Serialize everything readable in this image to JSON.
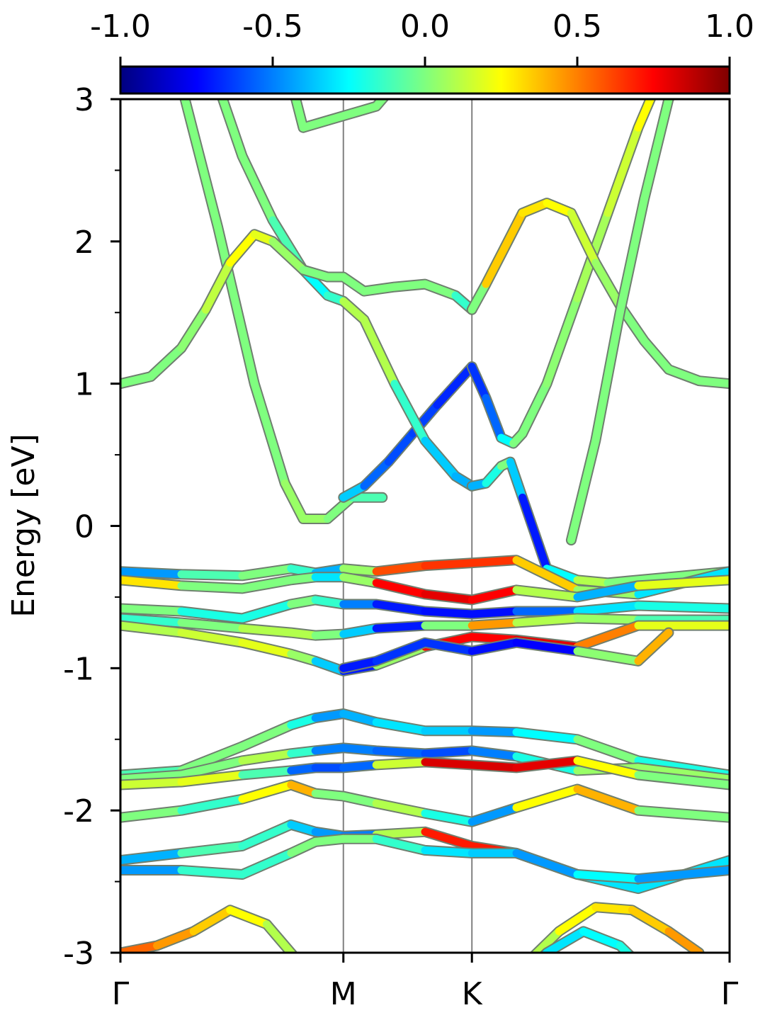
{
  "chart_data": {
    "type": "line",
    "ylabel": "Energy [eV]",
    "xlabel": "",
    "ylim": [
      -3,
      3
    ],
    "x_ticks": [
      {
        "label": "Γ",
        "k": 0
      },
      {
        "label": "M",
        "k": 0.366
      },
      {
        "label": "K",
        "k": 0.577
      },
      {
        "label": "Γ",
        "k": 1.0
      }
    ],
    "y_major_ticks": [
      3,
      2,
      1,
      0,
      -1,
      -2,
      -3
    ],
    "y_tick_labels": [
      "3",
      "2",
      "1",
      "0",
      "-1",
      "-2",
      "-3"
    ],
    "y_minor_ticks": [
      2.5,
      1.5,
      0.5,
      -0.5,
      -1.5,
      -2.5
    ],
    "vertical_lines_at_k": [
      0.366,
      0.577
    ],
    "colorbar": {
      "position": "top",
      "range": [
        -1.0,
        1.0
      ],
      "ticks": [
        -1.0,
        -0.5,
        0.0,
        0.5,
        1.0
      ],
      "tick_labels": [
        "-1.0",
        "-0.5",
        "0.0",
        "0.5",
        "1.0"
      ],
      "colormap": "jet",
      "colors": [
        "#00007f",
        "#0000ff",
        "#007fff",
        "#00ffff",
        "#7fff7f",
        "#ffff00",
        "#ff7f00",
        "#ff0000",
        "#7f0000"
      ]
    },
    "series": [
      {
        "k": [
          0.1,
          0.16,
          0.22,
          0.27,
          0.3,
          0.34,
          0.38,
          0.43
        ],
        "E": [
          3.1,
          2.1,
          1.0,
          0.3,
          0.05,
          0.05,
          0.2,
          0.2
        ],
        "c": [
          0.0,
          0.0,
          0.0,
          0.0,
          0.1,
          0.0,
          0.0,
          -0.2
        ]
      },
      {
        "k": [
          0.366,
          0.4,
          0.44,
          0.48,
          0.52,
          0.577
        ],
        "E": [
          0.2,
          0.28,
          0.45,
          0.65,
          0.85,
          1.12
        ],
        "c": [
          -0.2,
          -0.5,
          -0.6,
          -0.6,
          -0.65,
          -0.7
        ]
      },
      {
        "k": [
          0.577,
          0.6,
          0.625,
          0.645,
          0.66,
          0.7,
          0.75,
          0.8,
          0.85,
          0.9,
          0.95,
          1.0
        ],
        "E": [
          1.12,
          0.9,
          0.62,
          0.58,
          0.65,
          1.0,
          1.6,
          2.2,
          2.8,
          3.3,
          3.8,
          4.2
        ],
        "c": [
          -0.7,
          -0.6,
          -0.5,
          0.0,
          0.0,
          0.0,
          0.05,
          0.1,
          0.2,
          0.3,
          0.3,
          0.3
        ]
      },
      {
        "k": [
          0.16,
          0.2,
          0.25,
          0.3,
          0.34,
          0.366,
          0.4,
          0.45,
          0.5,
          0.55,
          0.577
        ],
        "E": [
          3.1,
          2.6,
          2.15,
          1.8,
          1.62,
          1.58,
          1.45,
          1.0,
          0.6,
          0.35,
          0.28
        ],
        "c": [
          0.0,
          0.0,
          0.0,
          -0.2,
          -0.3,
          0.0,
          0.2,
          0.0,
          -0.3,
          -0.4,
          -0.4
        ],
        "bottom_c": 0.5
      },
      {
        "k": [
          0.577,
          0.6,
          0.625,
          0.64,
          0.66,
          0.7,
          0.75,
          0.8,
          0.9,
          1.0
        ],
        "E": [
          0.28,
          0.3,
          0.42,
          0.45,
          0.2,
          -0.3,
          -0.38,
          -0.4,
          -0.36,
          -0.32
        ],
        "c": [
          -0.4,
          -0.4,
          0.0,
          0.0,
          -0.7,
          -0.7,
          0.2,
          0.0,
          0.0,
          0.0
        ]
      },
      {
        "k": [
          0.0,
          0.05,
          0.1,
          0.14,
          0.18,
          0.22,
          0.25,
          0.3,
          0.34,
          0.366,
          0.4,
          0.45,
          0.5,
          0.55,
          0.577
        ],
        "E": [
          1.0,
          1.05,
          1.25,
          1.52,
          1.85,
          2.05,
          2.0,
          1.8,
          1.75,
          1.75,
          1.65,
          1.68,
          1.7,
          1.62,
          1.52
        ],
        "c": [
          0.0,
          0.0,
          0.0,
          0.05,
          0.2,
          0.3,
          0.1,
          0.0,
          0.0,
          0.0,
          0.0,
          0.0,
          0.0,
          0.0,
          -0.3
        ],
        "bottom_c": 0.5
      },
      {
        "k": [
          0.577,
          0.6,
          0.63,
          0.66,
          0.7,
          0.74,
          0.78,
          0.82,
          0.86,
          0.9,
          0.95,
          1.0
        ],
        "E": [
          1.52,
          1.7,
          1.95,
          2.2,
          2.27,
          2.2,
          1.85,
          1.55,
          1.3,
          1.1,
          1.02,
          1.0
        ],
        "c": [
          -0.3,
          0.3,
          0.4,
          0.3,
          0.3,
          0.2,
          0.1,
          0.0,
          0.0,
          0.0,
          0.0,
          0.0
        ]
      },
      {
        "k": [
          0.74,
          0.78,
          0.82,
          0.86,
          0.9,
          0.95
        ],
        "E": [
          -0.1,
          0.6,
          1.5,
          2.3,
          3.0,
          3.4
        ],
        "c": [
          0.0,
          0.0,
          0.0,
          0.0,
          0.0,
          0.0
        ]
      },
      {
        "k": [
          0.27,
          0.3,
          0.34,
          0.38,
          0.42,
          0.45
        ],
        "E": [
          3.3,
          2.8,
          2.85,
          2.9,
          2.95,
          3.1
        ],
        "c": [
          0.0,
          0.0,
          0.0,
          0.0,
          0.0,
          0.0
        ]
      },
      {
        "k": [
          0.0,
          0.1,
          0.2,
          0.28,
          0.32,
          0.366,
          0.42,
          0.5,
          0.577,
          0.65,
          0.75,
          0.85,
          1.0
        ],
        "E": [
          -0.32,
          -0.34,
          -0.35,
          -0.3,
          -0.33,
          -0.3,
          -0.32,
          -0.28,
          -0.26,
          -0.24,
          -0.45,
          -0.48,
          -0.32
        ],
        "c": [
          -0.7,
          -0.2,
          0.0,
          0.0,
          -0.3,
          -0.5,
          0.6,
          0.6,
          0.7,
          0.6,
          0.1,
          0.0,
          -0.6
        ]
      },
      {
        "k": [
          0.0,
          0.1,
          0.2,
          0.28,
          0.32,
          0.366,
          0.42,
          0.5,
          0.577,
          0.65,
          0.75,
          0.85,
          1.0
        ],
        "E": [
          -0.38,
          -0.42,
          -0.44,
          -0.38,
          -0.36,
          -0.36,
          -0.4,
          -0.48,
          -0.52,
          -0.45,
          -0.5,
          -0.42,
          -0.38
        ],
        "c": [
          0.6,
          0.0,
          0.0,
          0.0,
          0.0,
          -0.6,
          0.7,
          0.8,
          0.8,
          0.7,
          -0.5,
          -0.3,
          0.7
        ]
      },
      {
        "k": [
          0.0,
          0.1,
          0.2,
          0.28,
          0.32,
          0.366,
          0.42,
          0.5,
          0.577,
          0.65,
          0.75,
          0.85,
          1.0
        ],
        "E": [
          -0.58,
          -0.6,
          -0.65,
          -0.55,
          -0.52,
          -0.55,
          -0.55,
          -0.6,
          -0.62,
          -0.6,
          -0.6,
          -0.56,
          -0.58
        ],
        "c": [
          0.0,
          0.0,
          -0.4,
          0.0,
          0.0,
          -0.3,
          -0.7,
          -0.7,
          -0.75,
          -0.7,
          -0.4,
          -0.2,
          -0.2
        ]
      },
      {
        "k": [
          0.0,
          0.1,
          0.2,
          0.28,
          0.32,
          0.366,
          0.42,
          0.5,
          0.577,
          0.65,
          0.75,
          0.85,
          1.0
        ],
        "E": [
          -0.65,
          -0.68,
          -0.72,
          -0.75,
          -0.77,
          -0.76,
          -0.72,
          -0.7,
          -0.7,
          -0.68,
          -0.65,
          -0.66,
          -0.66
        ],
        "c": [
          -0.3,
          0.0,
          0.0,
          0.2,
          0.0,
          0.0,
          -0.7,
          -0.7,
          0.7,
          0.2,
          0.0,
          0.1,
          -0.3
        ]
      },
      {
        "k": [
          0.0,
          0.1,
          0.2,
          0.28,
          0.32,
          0.366,
          0.42,
          0.5,
          0.577,
          0.65,
          0.75,
          0.85,
          1.0
        ],
        "E": [
          -0.7,
          -0.75,
          -0.82,
          -0.9,
          -0.95,
          -1.02,
          -0.98,
          -0.85,
          -0.78,
          -0.8,
          -0.85,
          -0.7,
          -0.7
        ],
        "c": [
          0.2,
          0.0,
          0.3,
          0.1,
          0.0,
          -0.7,
          -0.7,
          0.8,
          0.7,
          0.8,
          0.8,
          0.2,
          0.2
        ]
      },
      {
        "k": [
          0.366,
          0.42,
          0.5,
          0.577,
          0.65,
          0.75,
          0.85,
          0.9
        ],
        "E": [
          -1.0,
          -0.95,
          -0.82,
          -0.88,
          -0.82,
          -0.88,
          -0.95,
          -0.75
        ],
        "c": [
          -0.7,
          -0.7,
          -0.6,
          -0.7,
          -0.75,
          -0.75,
          0.8,
          0.0
        ]
      },
      {
        "k": [
          0.0,
          0.1,
          0.2,
          0.28,
          0.32,
          0.366,
          0.42,
          0.5,
          0.577,
          0.65,
          0.75,
          0.85,
          1.0
        ],
        "E": [
          -1.75,
          -1.72,
          -1.55,
          -1.4,
          -1.35,
          -1.32,
          -1.38,
          -1.44,
          -1.44,
          -1.45,
          -1.5,
          -1.65,
          -1.75
        ],
        "c": [
          -0.2,
          0.0,
          0.0,
          0.0,
          -0.4,
          -0.5,
          -0.3,
          -0.3,
          -0.4,
          -0.5,
          0.0,
          0.0,
          -0.4
        ]
      },
      {
        "k": [
          0.0,
          0.1,
          0.2,
          0.28,
          0.32,
          0.366,
          0.42,
          0.5,
          0.577,
          0.65,
          0.75,
          0.85,
          1.0
        ],
        "E": [
          -1.78,
          -1.75,
          -1.65,
          -1.6,
          -1.58,
          -1.56,
          -1.58,
          -1.6,
          -1.58,
          -1.62,
          -1.72,
          -1.7,
          -1.78
        ],
        "c": [
          0.0,
          0.0,
          0.0,
          0.2,
          -0.5,
          -0.5,
          -0.5,
          -0.6,
          -0.6,
          -0.4,
          0.0,
          0.1,
          0.0
        ]
      },
      {
        "k": [
          0.0,
          0.1,
          0.2,
          0.28,
          0.32,
          0.366,
          0.42,
          0.5,
          0.577,
          0.65,
          0.75,
          0.85,
          1.0
        ],
        "E": [
          -1.82,
          -1.8,
          -1.75,
          -1.72,
          -1.7,
          -1.7,
          -1.68,
          -1.66,
          -1.68,
          -1.7,
          -1.65,
          -1.75,
          -1.82
        ],
        "c": [
          0.2,
          0.1,
          0.3,
          -0.5,
          -0.6,
          -0.6,
          -0.5,
          0.8,
          0.85,
          0.8,
          0.8,
          -0.3,
          0.3
        ]
      },
      {
        "k": [
          0.0,
          0.1,
          0.2,
          0.28,
          0.32,
          0.366,
          0.42,
          0.5,
          0.577,
          0.65,
          0.75,
          0.85,
          1.0
        ],
        "E": [
          -2.05,
          -2.0,
          -1.92,
          -1.82,
          -1.88,
          -1.9,
          -1.95,
          -2.02,
          -2.08,
          -1.98,
          -1.85,
          -2.0,
          -2.05
        ],
        "c": [
          0.0,
          0.0,
          -0.3,
          0.8,
          0.0,
          0.0,
          0.0,
          0.2,
          -0.6,
          -0.3,
          0.8,
          0.0,
          0.0
        ]
      },
      {
        "k": [
          0.0,
          0.1,
          0.2,
          0.28,
          0.32,
          0.366,
          0.42,
          0.5,
          0.577,
          0.65,
          0.75,
          0.85,
          1.0
        ],
        "E": [
          -2.35,
          -2.3,
          -2.25,
          -2.1,
          -2.15,
          -2.18,
          -2.17,
          -2.15,
          -2.25,
          -2.3,
          -2.45,
          -2.55,
          -2.35
        ],
        "c": [
          -0.6,
          -0.2,
          0.0,
          -0.3,
          -0.4,
          -0.5,
          -0.5,
          0.7,
          0.7,
          0.7,
          -0.6,
          0.0,
          -0.6
        ]
      },
      {
        "k": [
          0.0,
          0.1,
          0.2,
          0.28,
          0.32,
          0.366,
          0.42,
          0.5,
          0.577,
          0.65,
          0.75,
          0.85,
          1.0
        ],
        "E": [
          -2.42,
          -2.42,
          -2.45,
          -2.3,
          -2.22,
          -2.2,
          -2.2,
          -2.28,
          -2.3,
          -2.3,
          -2.45,
          -2.48,
          -2.42
        ],
        "c": [
          -0.9,
          0.0,
          -0.3,
          0.0,
          0.0,
          0.0,
          0.0,
          -0.3,
          -0.3,
          -0.4,
          -0.5,
          0.0,
          -0.9
        ]
      },
      {
        "k": [
          0.0,
          0.06,
          0.12,
          0.18,
          0.24,
          0.3
        ],
        "E": [
          -3.0,
          -2.95,
          -2.85,
          -2.7,
          -2.8,
          -3.1
        ],
        "c": [
          0.6,
          0.5,
          0.4,
          0.3,
          0.2,
          0.0
        ]
      },
      {
        "k": [
          0.66,
          0.72,
          0.78,
          0.84,
          0.9,
          0.95
        ],
        "E": [
          -3.1,
          -2.85,
          -2.68,
          -2.7,
          -2.85,
          -3.0
        ],
        "c": [
          0.0,
          0.2,
          0.3,
          0.3,
          0.4,
          0.5
        ]
      },
      {
        "k": [
          0.65,
          0.7,
          0.76,
          0.82,
          0.88
        ],
        "E": [
          -3.2,
          -3.0,
          -2.85,
          -2.95,
          -3.2
        ],
        "c": [
          -0.4,
          -0.3,
          -0.3,
          -0.2,
          -0.2
        ]
      }
    ]
  }
}
